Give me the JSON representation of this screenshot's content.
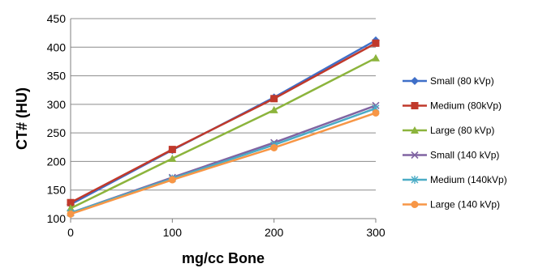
{
  "chart_data": {
    "type": "line",
    "title": "",
    "xlabel": "mg/cc Bone",
    "ylabel": "CT# (HU)",
    "x": [
      0,
      100,
      200,
      300
    ],
    "xticks": [
      0,
      100,
      200,
      300
    ],
    "xlim": [
      0,
      300
    ],
    "yticks": [
      100,
      150,
      200,
      250,
      300,
      350,
      400,
      450
    ],
    "ylim": [
      100,
      450
    ],
    "grid": "horizontal",
    "legend_position": "right",
    "series": [
      {
        "name": "Small  (80 kVp)",
        "color": "#3f6fc8",
        "marker": "diamond",
        "values": [
          125,
          220,
          312,
          412
        ]
      },
      {
        "name": "Medium (80kVp)",
        "color": "#c0392b",
        "marker": "square",
        "values": [
          128,
          221,
          310,
          407
        ]
      },
      {
        "name": "Large (80 kVp)",
        "color": "#8cb43c",
        "marker": "triangle",
        "values": [
          118,
          205,
          290,
          381
        ]
      },
      {
        "name": "Small  (140 kVp)",
        "color": "#8064a2",
        "marker": "x",
        "values": [
          110,
          172,
          233,
          298
        ]
      },
      {
        "name": "Medium (140kVp)",
        "color": "#4bacc6",
        "marker": "star",
        "values": [
          110,
          170,
          229,
          293
        ]
      },
      {
        "name": "Large (140 kVp)",
        "color": "#f79646",
        "marker": "circle",
        "values": [
          108,
          168,
          224,
          285
        ]
      }
    ]
  }
}
